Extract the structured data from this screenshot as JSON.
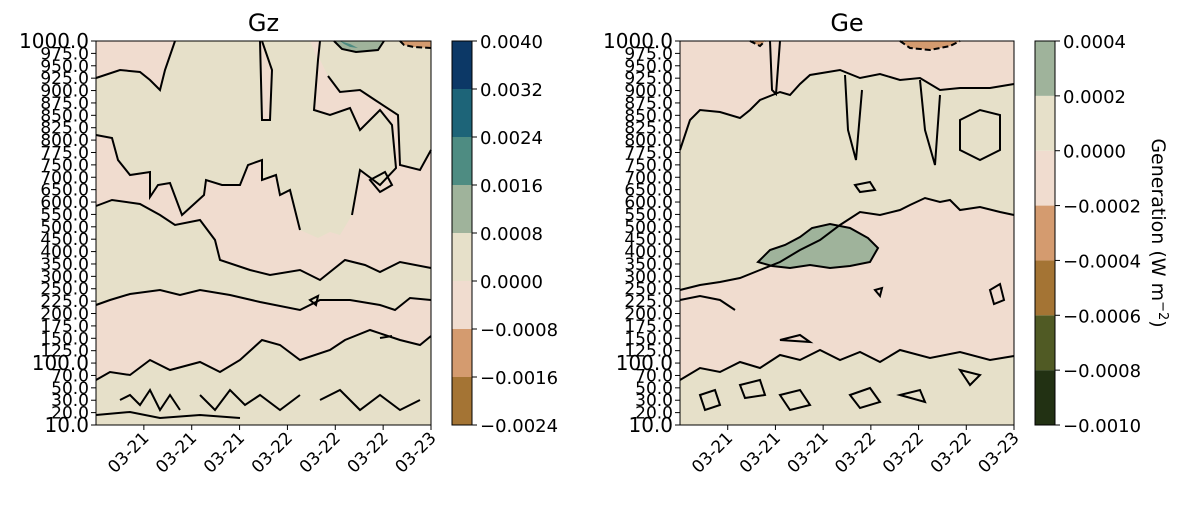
{
  "chart_data": [
    {
      "type": "contour",
      "title": "Gz",
      "ylabel": "",
      "xlabel": "",
      "y_levels": [
        "10.0",
        "20.0",
        "30.0",
        "50.0",
        "70.0",
        "100.0",
        "125.0",
        "150.0",
        "175.0",
        "200.0",
        "225.0",
        "250.0",
        "300.0",
        "350.0",
        "400.0",
        "450.0",
        "500.0",
        "550.0",
        "600.0",
        "650.0",
        "700.0",
        "750.0",
        "775.0",
        "800.0",
        "825.0",
        "850.0",
        "875.0",
        "900.0",
        "925.0",
        "950.0",
        "975.0",
        "1000.0"
      ],
      "x_ticks": [
        "03-21",
        "03-21",
        "03-21",
        "03-22",
        "03-22",
        "03-22",
        "03-23"
      ],
      "colorbar": {
        "ticks": [
          "0.0040",
          "0.0032",
          "0.0024",
          "0.0016",
          "0.0008",
          "0.0000",
          "−0.0008",
          "−0.0016",
          "−0.0024"
        ],
        "bands": [
          {
            "from": -0.0024,
            "to": -0.0016,
            "color": "#a47434"
          },
          {
            "from": -0.0016,
            "to": -0.0008,
            "color": "#d49b6f"
          },
          {
            "from": -0.0008,
            "to": 0.0,
            "color": "#f0dccf"
          },
          {
            "from": 0.0,
            "to": 0.0008,
            "color": "#e6e0c9"
          },
          {
            "from": 0.0008,
            "to": 0.0016,
            "color": "#9fb39b"
          },
          {
            "from": 0.0016,
            "to": 0.0024,
            "color": "#4e8c82"
          },
          {
            "from": 0.0024,
            "to": 0.0032,
            "color": "#1d6478"
          },
          {
            "from": 0.0032,
            "to": 0.004,
            "color": "#0c3866"
          }
        ]
      }
    },
    {
      "type": "contour",
      "title": "Ge",
      "ylabel": "",
      "xlabel": "",
      "y_levels": [
        "10.0",
        "20.0",
        "30.0",
        "50.0",
        "70.0",
        "100.0",
        "125.0",
        "150.0",
        "175.0",
        "200.0",
        "225.0",
        "250.0",
        "300.0",
        "350.0",
        "400.0",
        "450.0",
        "500.0",
        "550.0",
        "600.0",
        "650.0",
        "700.0",
        "750.0",
        "775.0",
        "800.0",
        "825.0",
        "850.0",
        "875.0",
        "900.0",
        "925.0",
        "950.0",
        "975.0",
        "1000.0"
      ],
      "x_ticks": [
        "03-21",
        "03-21",
        "03-21",
        "03-22",
        "03-22",
        "03-22",
        "03-23"
      ],
      "colorbar": {
        "label_text": "Generation  (W m",
        "label_exp": "−2",
        "label_close": ")",
        "ticks": [
          "0.0004",
          "0.0002",
          "0.0000",
          "−0.0002",
          "−0.0004",
          "−0.0006",
          "−0.0008",
          "−0.0010"
        ],
        "bands": [
          {
            "from": -0.001,
            "to": -0.0008,
            "color": "#223113"
          },
          {
            "from": -0.0008,
            "to": -0.0006,
            "color": "#505a24"
          },
          {
            "from": -0.0006,
            "to": -0.0004,
            "color": "#a47434"
          },
          {
            "from": -0.0004,
            "to": -0.0002,
            "color": "#d49b6f"
          },
          {
            "from": -0.0002,
            "to": 0.0,
            "color": "#f0dccf"
          },
          {
            "from": 0.0,
            "to": 0.0002,
            "color": "#e6e0c9"
          },
          {
            "from": 0.0002,
            "to": 0.0004,
            "color": "#9fb39b"
          }
        ]
      }
    }
  ]
}
